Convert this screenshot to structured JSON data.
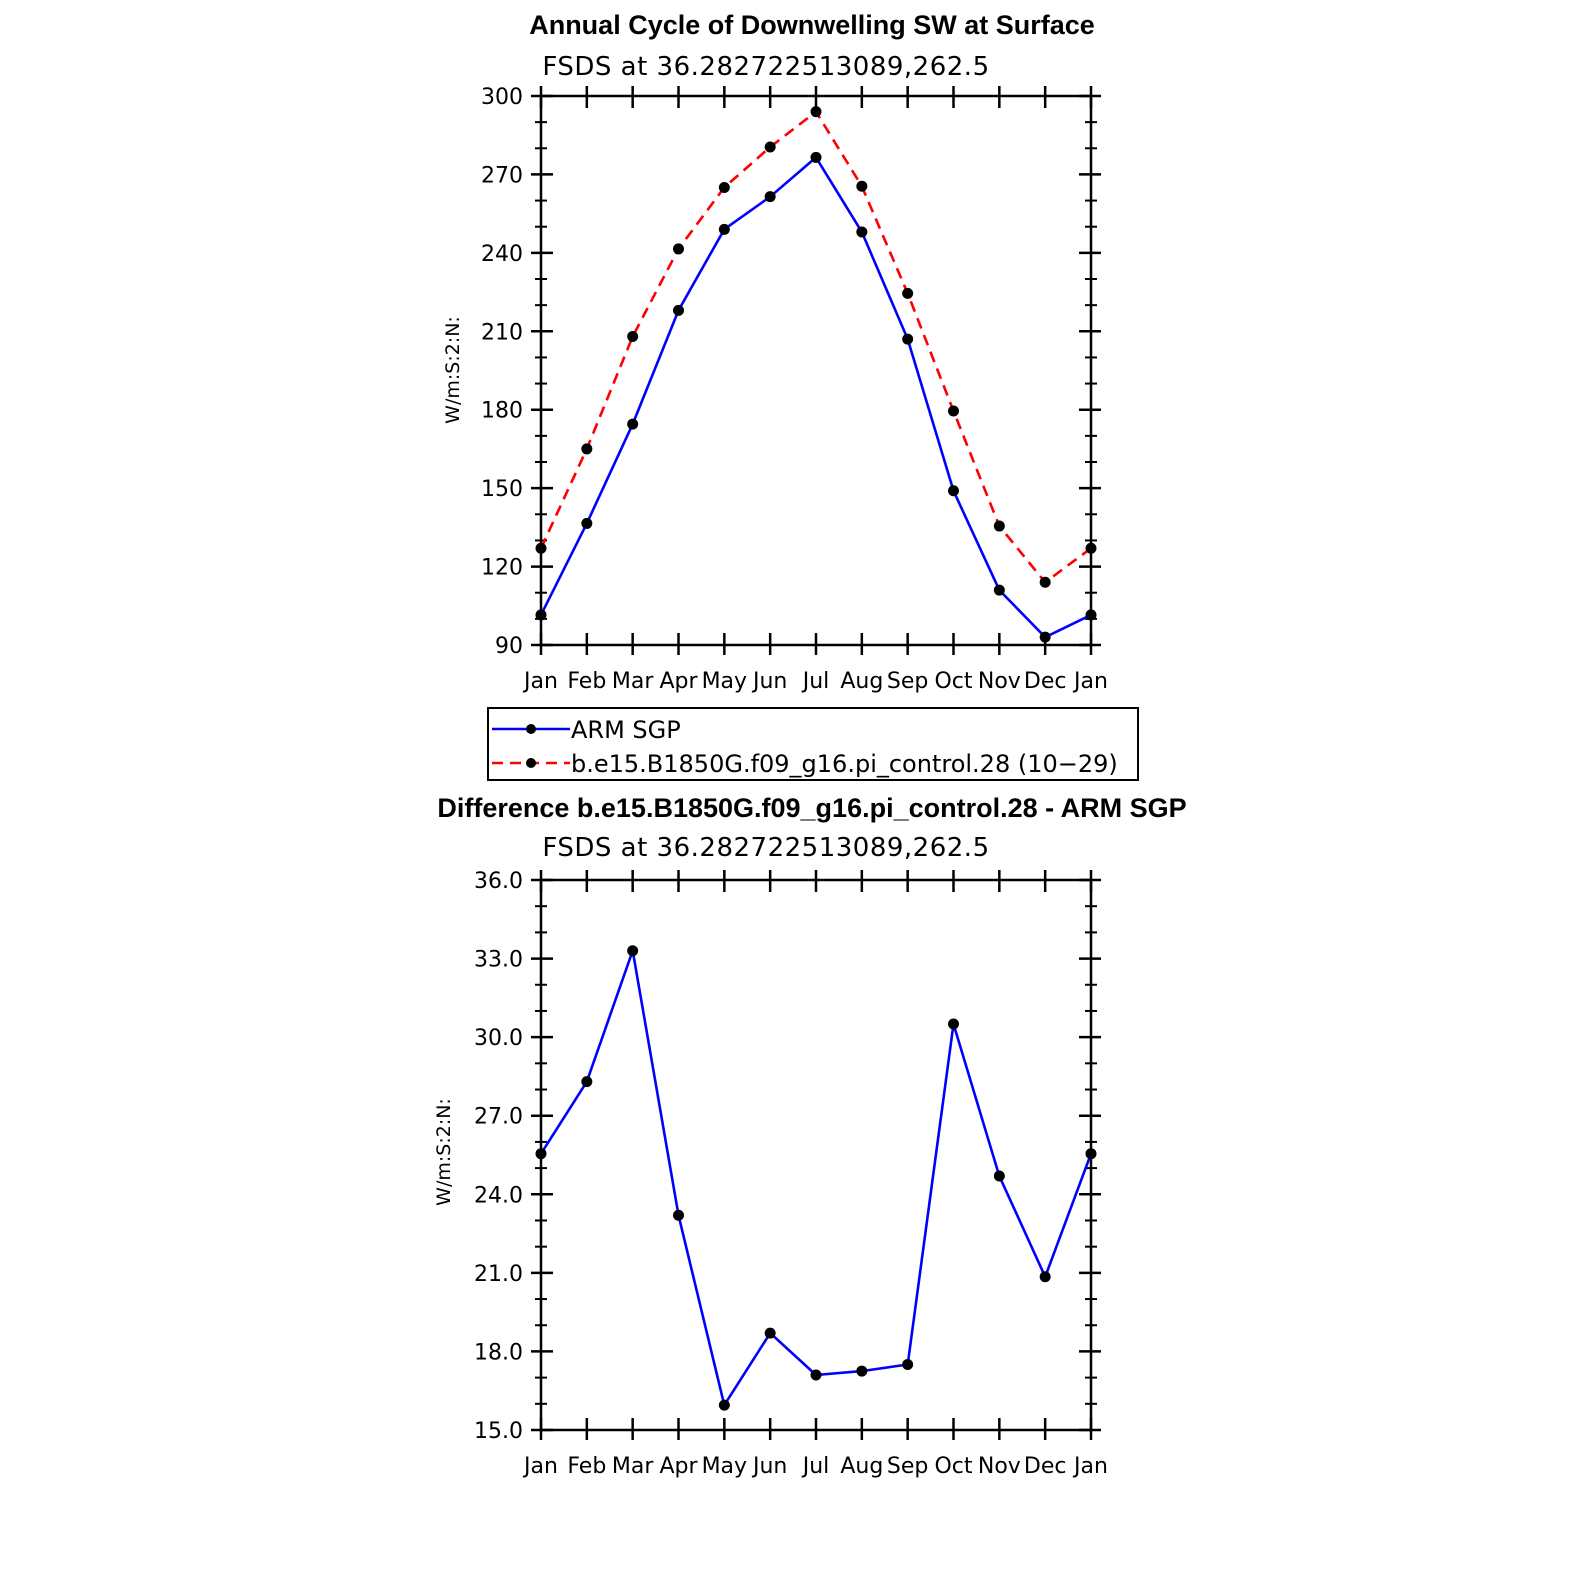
{
  "chart_data": [
    {
      "type": "line",
      "title": "Annual Cycle of Downwelling SW at Surface",
      "subtitle": "FSDS at 36.282722513089,262.5",
      "xlabel": "",
      "ylabel": "W/m:S:2:N:",
      "categories": [
        "Jan",
        "Feb",
        "Mar",
        "Apr",
        "May",
        "Jun",
        "Jul",
        "Aug",
        "Sep",
        "Oct",
        "Nov",
        "Dec",
        "Jan"
      ],
      "ylim": [
        90,
        300
      ],
      "yticks": [
        "90",
        "120",
        "150",
        "180",
        "210",
        "240",
        "270",
        "300"
      ],
      "series": [
        {
          "name": "ARM SGP",
          "color": "#0000ff",
          "style": "solid",
          "values": [
            101.5,
            136.5,
            174.5,
            218,
            249,
            261.5,
            276.5,
            248,
            207,
            149,
            111,
            93,
            101.5
          ]
        },
        {
          "name": "b.e15.B1850G.f09_g16.pi_control.28 (10−29)",
          "color": "#ff0000",
          "style": "dashed",
          "values": [
            127,
            165,
            208,
            241.5,
            265,
            280.5,
            294,
            265.5,
            224.5,
            179.5,
            135.5,
            114,
            127
          ]
        }
      ],
      "legend": "below"
    },
    {
      "type": "line",
      "title": "Difference b.e15.B1850G.f09_g16.pi_control.28 - ARM SGP",
      "subtitle": "FSDS at 36.282722513089,262.5",
      "xlabel": "",
      "ylabel": "W/m:S:2:N:",
      "categories": [
        "Jan",
        "Feb",
        "Mar",
        "Apr",
        "May",
        "Jun",
        "Jul",
        "Aug",
        "Sep",
        "Oct",
        "Nov",
        "Dec",
        "Jan"
      ],
      "ylim": [
        15,
        36
      ],
      "yticks": [
        "15.0",
        "18.0",
        "21.0",
        "24.0",
        "27.0",
        "30.0",
        "33.0",
        "36.0"
      ],
      "series": [
        {
          "color": "#0000ff",
          "style": "solid",
          "values": [
            25.55,
            28.3,
            33.3,
            23.2,
            15.95,
            18.7,
            17.1,
            17.25,
            17.5,
            30.5,
            24.7,
            20.85,
            25.55
          ]
        }
      ]
    }
  ]
}
